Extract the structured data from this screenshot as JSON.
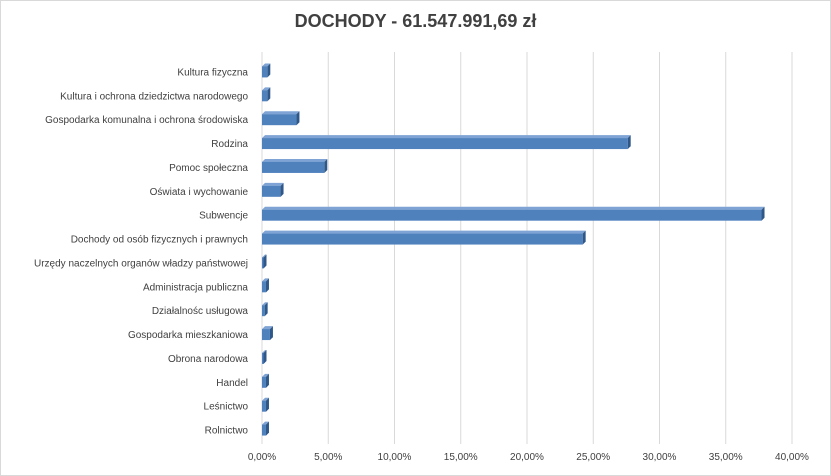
{
  "chart_data": {
    "type": "bar",
    "orientation": "horizontal",
    "title": "DOCHODY  - 61.547.991,69 zł",
    "xlabel": "",
    "ylabel": "",
    "xlim": [
      0,
      40
    ],
    "x_ticks": [
      "0,00%",
      "5,00%",
      "10,00%",
      "15,00%",
      "20,00%",
      "25,00%",
      "30,00%",
      "35,00%",
      "40,00%"
    ],
    "grid": "vertical",
    "legend": "none",
    "bar_color": "#4f81bd",
    "categories": [
      "Kultura fizyczna",
      "Kultura i ochrona dziedzictwa narodowego",
      "Gospodarka komunalna i ochrona środowiska",
      "Rodzina",
      "Pomoc społeczna",
      "Oświata i wychowanie",
      "Subwencje",
      "Dochody od osób fizycznych i prawnych",
      "Urzędy naczelnych organów władzy państwowej",
      "Administracja publiczna",
      "Działalnośc usługowa",
      "Gospodarka mieszkaniowa",
      "Obrona narodowa",
      "Handel",
      "Leśnictwo",
      "Rolnictwo"
    ],
    "values": [
      0.4,
      0.4,
      2.6,
      27.6,
      4.7,
      1.4,
      37.7,
      24.2,
      0.1,
      0.3,
      0.2,
      0.6,
      0.1,
      0.3,
      0.3,
      0.3
    ]
  }
}
